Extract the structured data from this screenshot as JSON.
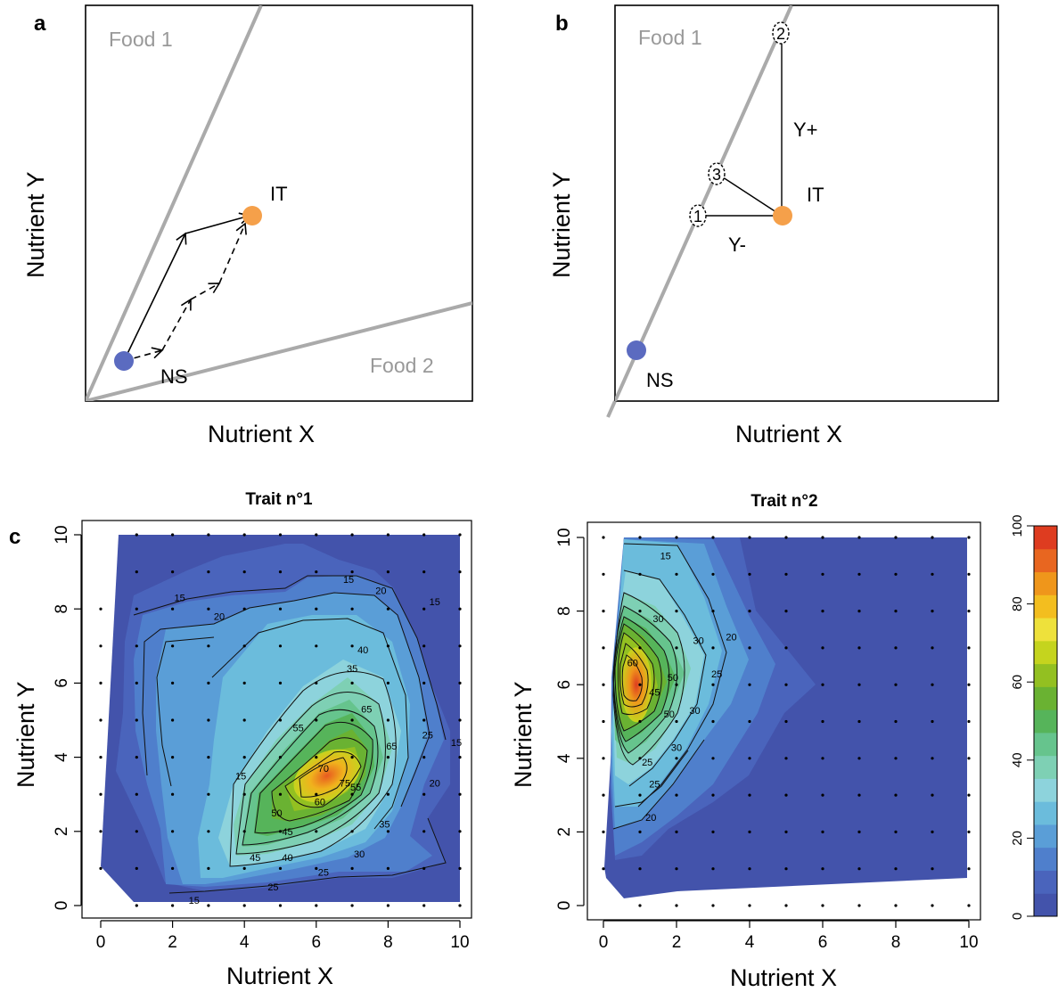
{
  "panel_a": {
    "letter": "a",
    "xlabel": "Nutrient X",
    "ylabel": "Nutrient Y",
    "food1": "Food 1",
    "food2": "Food 2",
    "start_label": "NS",
    "target_label": "IT",
    "start_color": "#5b6bc0",
    "target_color": "#f5a04a"
  },
  "panel_b": {
    "letter": "b",
    "xlabel": "Nutrient X",
    "ylabel": "Nutrient Y",
    "food1": "Food 1",
    "start_label": "NS",
    "target_label": "IT",
    "y_plus": "Y+",
    "y_minus": "Y-",
    "rule_markers": [
      "1",
      "2",
      "3"
    ]
  },
  "panel_c": {
    "letter": "c"
  },
  "chart_data": [
    {
      "type": "heatmap",
      "title": "Trait n°1",
      "xlabel": "Nutrient X",
      "ylabel": "Nutrient Y",
      "xlim": [
        0,
        10
      ],
      "ylim": [
        0,
        10
      ],
      "xticks": [
        "0",
        "2",
        "4",
        "6",
        "8",
        "10"
      ],
      "yticks": [
        "0",
        "2",
        "4",
        "6",
        "8",
        "10"
      ],
      "peak": {
        "x": 6.3,
        "y": 3.5,
        "value": 78
      },
      "contour_levels": [
        15,
        20,
        25,
        30,
        35,
        40,
        45,
        50,
        55,
        60,
        65,
        70,
        75
      ],
      "contour_labels": [
        {
          "text": "15",
          "x": 6.9,
          "y": 8.8
        },
        {
          "text": "15",
          "x": 2.2,
          "y": 8.3
        },
        {
          "text": "15",
          "x": 9.3,
          "y": 8.2
        },
        {
          "text": "15",
          "x": 3.9,
          "y": 3.5
        },
        {
          "text": "15",
          "x": 9.9,
          "y": 4.4
        },
        {
          "text": "15",
          "x": 2.6,
          "y": 0.15
        },
        {
          "text": "20",
          "x": 7.8,
          "y": 8.5
        },
        {
          "text": "20",
          "x": 3.3,
          "y": 7.8
        },
        {
          "text": "20",
          "x": 9.3,
          "y": 3.3
        },
        {
          "text": "25",
          "x": 9.1,
          "y": 4.6
        },
        {
          "text": "25",
          "x": 6.2,
          "y": 0.9
        },
        {
          "text": "25",
          "x": 4.8,
          "y": 0.5
        },
        {
          "text": "30",
          "x": 7.2,
          "y": 1.4
        },
        {
          "text": "35",
          "x": 7.9,
          "y": 2.2
        },
        {
          "text": "35",
          "x": 7.0,
          "y": 6.4
        },
        {
          "text": "40",
          "x": 7.3,
          "y": 6.9
        },
        {
          "text": "40",
          "x": 5.2,
          "y": 1.3
        },
        {
          "text": "45",
          "x": 5.2,
          "y": 2.0
        },
        {
          "text": "45",
          "x": 4.3,
          "y": 1.3
        },
        {
          "text": "50",
          "x": 4.9,
          "y": 2.5
        },
        {
          "text": "55",
          "x": 5.5,
          "y": 4.8
        },
        {
          "text": "55",
          "x": 7.1,
          "y": 3.2
        },
        {
          "text": "60",
          "x": 6.1,
          "y": 2.8
        },
        {
          "text": "65",
          "x": 7.4,
          "y": 5.3
        },
        {
          "text": "65",
          "x": 8.1,
          "y": 4.3
        },
        {
          "text": "70",
          "x": 6.2,
          "y": 3.7
        },
        {
          "text": "75",
          "x": 6.8,
          "y": 3.3
        }
      ]
    },
    {
      "type": "heatmap",
      "title": "Trait n°2",
      "xlabel": "Nutrient X",
      "ylabel": "Nutrient Y",
      "xlim": [
        0,
        10
      ],
      "ylim": [
        0,
        10
      ],
      "xticks": [
        "0",
        "2",
        "4",
        "6",
        "8",
        "10"
      ],
      "yticks": [
        "0",
        "2",
        "4",
        "6",
        "8",
        "10"
      ],
      "peak": {
        "x": 0.9,
        "y": 6.0,
        "value": 85
      },
      "contour_levels": [
        15,
        20,
        25,
        30,
        35,
        40,
        45,
        50,
        55,
        60,
        65,
        70,
        75,
        80
      ],
      "contour_labels": [
        {
          "text": "15",
          "x": 1.7,
          "y": 9.5
        },
        {
          "text": "30",
          "x": 1.5,
          "y": 7.8
        },
        {
          "text": "30",
          "x": 2.6,
          "y": 7.2
        },
        {
          "text": "20",
          "x": 3.5,
          "y": 7.3
        },
        {
          "text": "25",
          "x": 3.1,
          "y": 6.3
        },
        {
          "text": "50",
          "x": 1.9,
          "y": 6.2
        },
        {
          "text": "60",
          "x": 0.8,
          "y": 6.6
        },
        {
          "text": "45",
          "x": 1.4,
          "y": 5.8
        },
        {
          "text": "50",
          "x": 1.8,
          "y": 5.2
        },
        {
          "text": "30",
          "x": 2.5,
          "y": 5.3
        },
        {
          "text": "30",
          "x": 2.0,
          "y": 4.3
        },
        {
          "text": "25",
          "x": 1.2,
          "y": 3.9
        },
        {
          "text": "25",
          "x": 1.4,
          "y": 3.3
        },
        {
          "text": "20",
          "x": 1.3,
          "y": 2.4
        }
      ]
    }
  ],
  "colorbar": {
    "min": 0,
    "max": 100,
    "ticks": [
      "0",
      "20",
      "40",
      "60",
      "80",
      "100"
    ],
    "colors": [
      "#4353ab",
      "#4a64bc",
      "#4f7fcc",
      "#5a9ed7",
      "#6bbcdc",
      "#8dd3dc",
      "#7ed0b4",
      "#66c48d",
      "#56b45a",
      "#6ab232",
      "#93c021",
      "#c5d41e",
      "#eee13b",
      "#f3be1f",
      "#ef961b",
      "#e86620",
      "#de3c20"
    ]
  }
}
